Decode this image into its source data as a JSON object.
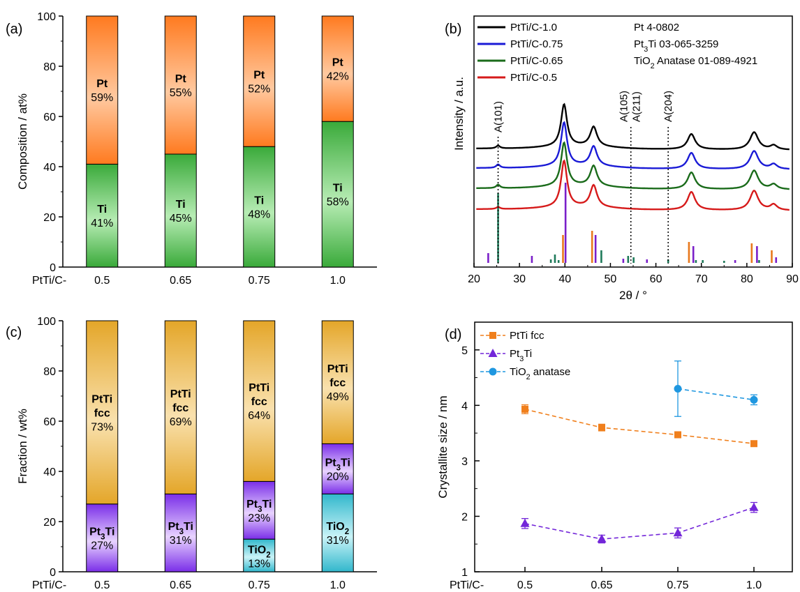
{
  "panels": {
    "a": {
      "label": "(a)"
    },
    "b": {
      "label": "(b)"
    },
    "c": {
      "label": "(c)"
    },
    "d": {
      "label": "(d)"
    }
  },
  "colors": {
    "pt_gradient": [
      "#ff7a1f",
      "#ffc9a0"
    ],
    "ti_gradient": [
      "#3aaa3a",
      "#b7ecb4"
    ],
    "fcc_gradient": [
      "#e4a629",
      "#f9e1ae"
    ],
    "pt3ti_gradient": [
      "#7a2ee8",
      "#e8d3ff"
    ],
    "tio2_gradient": [
      "#31b7cc",
      "#c9f3f7"
    ],
    "xrd_10": "#000000",
    "xrd_075": "#1a1ad6",
    "xrd_065": "#1a6b1a",
    "xrd_05": "#d61a1a",
    "ref_pt": "#e8781c",
    "ref_pt3ti": "#7a1fc9",
    "ref_tio2": "#1e7a5a",
    "d_fcc": "#f07f1c",
    "d_pt3ti": "#7326d9",
    "d_tio2": "#1f97e0"
  },
  "chart_data": [
    {
      "id": "a",
      "type": "bar",
      "stacked": true,
      "xlabel_prefix": "PtTi/C-",
      "categories": [
        "0.5",
        "0.65",
        "0.75",
        "1.0"
      ],
      "ylabel": "Composition / at%",
      "ylim": [
        0,
        100
      ],
      "yticks": [
        "0",
        "20",
        "40",
        "60",
        "80",
        "100"
      ],
      "series": [
        {
          "name": "Ti",
          "values": [
            41,
            45,
            48,
            58
          ],
          "labels": [
            "41%",
            "45%",
            "48%",
            "58%"
          ]
        },
        {
          "name": "Pt",
          "values": [
            59,
            55,
            52,
            42
          ],
          "labels": [
            "59%",
            "55%",
            "52%",
            "42%"
          ]
        }
      ]
    },
    {
      "id": "b",
      "type": "line",
      "xlabel": "2θ / °",
      "ylabel": "Intensity / a.u.",
      "xlim": [
        20,
        90
      ],
      "xticks": [
        "20",
        "30",
        "40",
        "50",
        "60",
        "70",
        "80",
        "90"
      ],
      "series": [
        {
          "name": "PtTi/C-1.0",
          "key": "xrd_10"
        },
        {
          "name": "PtTi/C-0.75",
          "key": "xrd_075"
        },
        {
          "name": "PtTi/C-0.65",
          "key": "xrd_065"
        },
        {
          "name": "PtTi/C-0.5",
          "key": "xrd_05"
        }
      ],
      "peaks_2theta": [
        25.3,
        39.8,
        46.3,
        67.8,
        81.6,
        85.9
      ],
      "references": [
        {
          "name": "Pt 4-0802",
          "key": "ref_pt",
          "positions": [
            39.8,
            46.2,
            67.5,
            81.3,
            85.7
          ]
        },
        {
          "name": "Pt₃Ti 03-065-3259",
          "key": "ref_pt3ti",
          "positions": [
            22.9,
            32.5,
            39.9,
            46.5,
            52.6,
            57.8,
            68.0,
            77.2,
            82.0,
            86.2
          ]
        },
        {
          "name": "TiO₂ Anatase 01-089-4921",
          "key": "ref_tio2",
          "positions": [
            25.3,
            36.9,
            37.8,
            38.6,
            48.0,
            53.9,
            55.1,
            62.7,
            68.8,
            70.3,
            75.0,
            82.7
          ]
        }
      ],
      "annotations": [
        {
          "text": "A(101)",
          "x": 25.3
        },
        {
          "text": "A(105)",
          "x": 54.5
        },
        {
          "text": "A(211)",
          "x": 54.5
        },
        {
          "text": "A(204)",
          "x": 62.7
        }
      ]
    },
    {
      "id": "c",
      "type": "bar",
      "stacked": true,
      "xlabel_prefix": "PtTi/C-",
      "categories": [
        "0.5",
        "0.65",
        "0.75",
        "1.0"
      ],
      "ylabel": "Fraction / wt%",
      "ylim": [
        0,
        100
      ],
      "yticks": [
        "0",
        "20",
        "40",
        "60",
        "80",
        "100"
      ],
      "series": [
        {
          "name": "TiO₂",
          "values": [
            0,
            0,
            13,
            31
          ],
          "labels": [
            "",
            "",
            "13%",
            "31%"
          ]
        },
        {
          "name": "Pt₃Ti",
          "values": [
            27,
            31,
            23,
            20
          ],
          "labels": [
            "27%",
            "31%",
            "23%",
            "20%"
          ]
        },
        {
          "name": "PtTi fcc",
          "values": [
            73,
            69,
            64,
            49
          ],
          "labels": [
            "73%",
            "69%",
            "64%",
            "49%"
          ]
        }
      ]
    },
    {
      "id": "d",
      "type": "line",
      "xlabel_prefix": "PtTi/C-",
      "categories": [
        "0.5",
        "0.65",
        "0.75",
        "1.0"
      ],
      "ylabel": "Crystallite size / nm",
      "ylim": [
        1,
        5.5
      ],
      "yticks": [
        "1",
        "2",
        "3",
        "4",
        "5"
      ],
      "legend": "top-left",
      "series": [
        {
          "name": "PtTi fcc",
          "key": "d_fcc",
          "marker": "square",
          "values": [
            3.93,
            3.6,
            3.47,
            3.31
          ],
          "err": [
            0.08,
            0.06,
            0.04,
            0.03
          ]
        },
        {
          "name": "Pt₃Ti",
          "key": "d_pt3ti",
          "marker": "triangle",
          "values": [
            1.87,
            1.59,
            1.7,
            2.16
          ],
          "err": [
            0.09,
            0.07,
            0.09,
            0.09
          ]
        },
        {
          "name": "TiO₂ anatase",
          "key": "d_tio2",
          "marker": "circle",
          "values": [
            null,
            null,
            4.3,
            4.1
          ],
          "err": [
            0,
            0,
            0.5,
            0.09
          ]
        }
      ]
    }
  ]
}
